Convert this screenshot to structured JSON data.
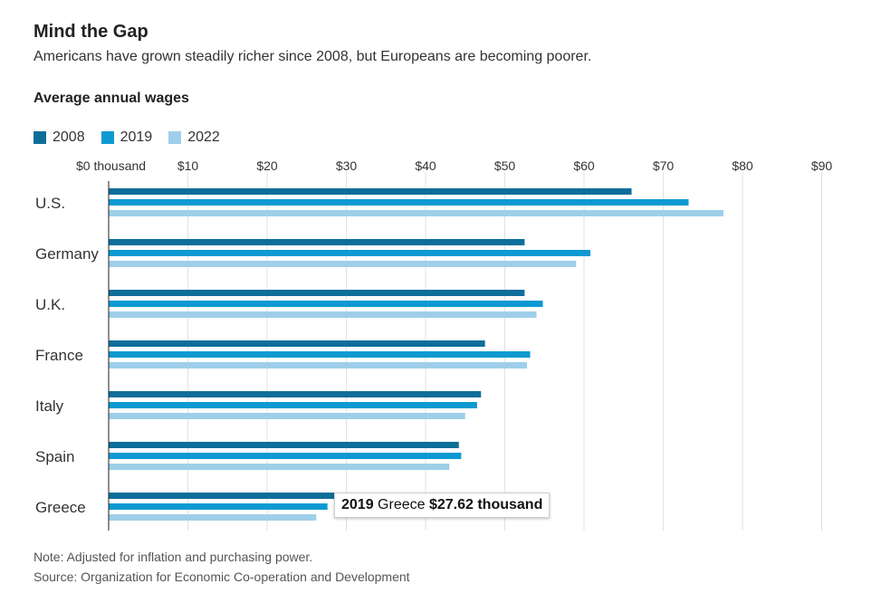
{
  "header": {
    "title": "Mind the Gap",
    "subtitle": "Americans have grown steadily richer since 2008, but Europeans are becoming poorer."
  },
  "chart_heading": "Average annual wages",
  "legend": [
    {
      "label": "2008",
      "color": "#0e6e9a"
    },
    {
      "label": "2019",
      "color": "#0d9ad2"
    },
    {
      "label": "2022",
      "color": "#9ecfea"
    }
  ],
  "tooltip": {
    "year": "2019",
    "country": "Greece",
    "value": "$27.62 thousand"
  },
  "footer": {
    "note": "Note: Adjusted for inflation and purchasing power.",
    "source": "Source: Organization for Economic Co-operation and Development"
  },
  "chart_data": {
    "type": "bar",
    "orientation": "horizontal",
    "title": "Mind the Gap",
    "subtitle": "Americans have grown steadily richer since 2008, but Europeans are becoming poorer.",
    "ylabel": "Average annual wages",
    "categories": [
      "U.S.",
      "Germany",
      "U.K.",
      "France",
      "Italy",
      "Spain",
      "Greece"
    ],
    "xlim": [
      0,
      90
    ],
    "ticks": [
      0,
      10,
      20,
      30,
      40,
      50,
      60,
      70,
      80,
      90
    ],
    "tick_labels": [
      "$0 thousand",
      "$10",
      "$20",
      "$30",
      "$40",
      "$50",
      "$60",
      "$70",
      "$80",
      "$90"
    ],
    "grid": true,
    "legend_position": "top-left",
    "series": [
      {
        "name": "2008",
        "color": "#0e6e9a",
        "values": [
          66.0,
          52.5,
          52.5,
          47.5,
          47.0,
          44.2,
          28.5
        ]
      },
      {
        "name": "2019",
        "color": "#0d9ad2",
        "values": [
          73.2,
          60.8,
          54.8,
          53.2,
          46.5,
          44.5,
          27.62
        ]
      },
      {
        "name": "2022",
        "color": "#9ecfea",
        "values": [
          77.6,
          59.0,
          54.0,
          52.8,
          45.0,
          43.0,
          26.2
        ]
      }
    ]
  }
}
